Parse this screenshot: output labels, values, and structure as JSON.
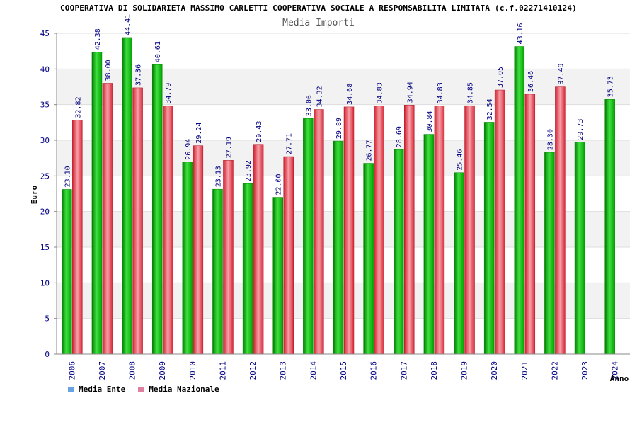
{
  "header": {
    "title": "COOPERATIVA DI SOLIDARIETA MASSIMO CARLETTI COOPERATIVA SOCIALE A RESPONSABILITA LIMITATA (c.f.02271410124)",
    "subtitle": "Media Importi"
  },
  "legend": {
    "ente_label": "Media Ente",
    "nazionale_label": "Media Nazionale"
  },
  "colors": {
    "ente": "#00b400",
    "nazionale": "#e03040",
    "axis_text": "#000080",
    "band": "#f2f2f2"
  },
  "chart_data": {
    "type": "bar",
    "title": "COOPERATIVA DI SOLIDARIETA MASSIMO CARLETTI COOPERATIVA SOCIALE A RESPONSABILITA LIMITATA (c.f.02271410124)",
    "subtitle": "Media Importi",
    "xlabel": "Anno",
    "ylabel": "Euro",
    "ylim": [
      0,
      45
    ],
    "yticks": [
      0,
      5,
      10,
      15,
      20,
      25,
      30,
      35,
      40,
      45
    ],
    "grid": true,
    "legend_position": "bottom-left",
    "categories": [
      "2006",
      "2007",
      "2008",
      "2009",
      "2010",
      "2011",
      "2012",
      "2013",
      "2014",
      "2015",
      "2016",
      "2017",
      "2018",
      "2019",
      "2020",
      "2021",
      "2022",
      "2023",
      "2024"
    ],
    "series": [
      {
        "name": "Media Ente",
        "values": [
          23.1,
          42.38,
          44.41,
          40.61,
          26.94,
          23.13,
          23.92,
          22.0,
          33.06,
          29.89,
          26.77,
          28.69,
          30.84,
          25.46,
          32.54,
          43.16,
          28.3,
          29.73,
          35.73
        ],
        "labels": [
          "23.10",
          "42.38",
          "44.41",
          "40.61",
          "26.94",
          "23.13",
          "23.92",
          "22.00",
          "33.06",
          "29.89",
          "26.77",
          "28.69",
          "30.84",
          "25.46",
          "32.54",
          "43.16",
          "28.30",
          "29.73",
          "35.73"
        ]
      },
      {
        "name": "Media Nazionale",
        "values": [
          32.82,
          38.0,
          37.36,
          34.79,
          29.24,
          27.19,
          29.43,
          27.71,
          34.32,
          34.68,
          34.83,
          34.94,
          34.83,
          34.85,
          37.05,
          36.46,
          37.49,
          null,
          null
        ],
        "labels": [
          "32.82",
          "38.00",
          "37.36",
          "34.79",
          "29.24",
          "27.19",
          "29.43",
          "27.71",
          "34.32",
          "34.68",
          "34.83",
          "34.94",
          "34.83",
          "34.85",
          "37.05",
          "36.46",
          "37.49",
          null,
          null
        ]
      }
    ]
  }
}
